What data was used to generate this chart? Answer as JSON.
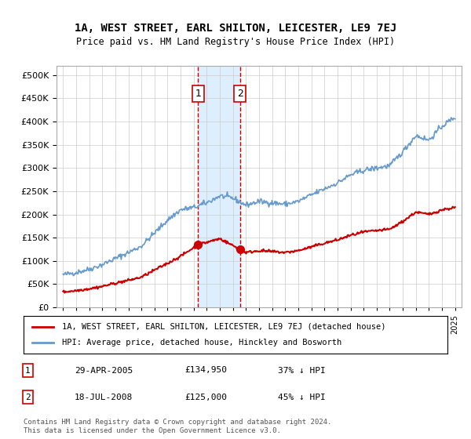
{
  "title": "1A, WEST STREET, EARL SHILTON, LEICESTER, LE9 7EJ",
  "subtitle": "Price paid vs. HM Land Registry's House Price Index (HPI)",
  "legend_line1": "1A, WEST STREET, EARL SHILTON, LEICESTER, LE9 7EJ (detached house)",
  "legend_line2": "HPI: Average price, detached house, Hinckley and Bosworth",
  "footer1": "Contains HM Land Registry data © Crown copyright and database right 2024.",
  "footer2": "This data is licensed under the Open Government Licence v3.0.",
  "sale1_label": "1",
  "sale1_date": "29-APR-2005",
  "sale1_price": "£134,950",
  "sale1_hpi": "37% ↓ HPI",
  "sale2_label": "2",
  "sale2_date": "18-JUL-2008",
  "sale2_price": "£125,000",
  "sale2_hpi": "45% ↓ HPI",
  "sale1_year": 2005.33,
  "sale2_year": 2008.54,
  "sale1_price_val": 134950,
  "sale2_price_val": 125000,
  "red_color": "#cc0000",
  "blue_color": "#6699cc",
  "shade_color": "#ddeeff",
  "background_color": "#ffffff",
  "grid_color": "#cccccc",
  "ylim": [
    0,
    520000
  ],
  "xlim": [
    1994.5,
    2025.5
  ]
}
